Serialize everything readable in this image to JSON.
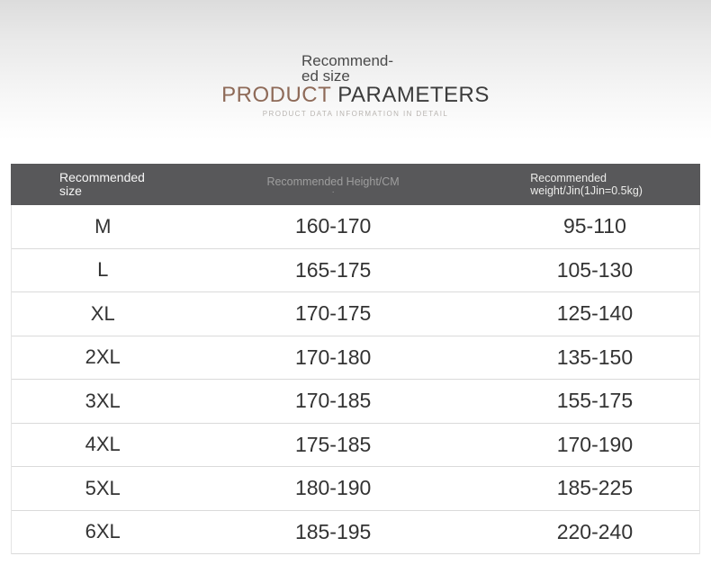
{
  "page": {
    "small_title": "Recommend-\ned size",
    "title_accent": "PRODUCT",
    "title_rest": "PARAMETERS",
    "subtitle": "PRODUCT DATA INFORMATION IN DETAIL"
  },
  "colors": {
    "accent": "#8e6a58",
    "header_bg": "#58585a",
    "body_text": "#333333",
    "row_border": "#dadada"
  },
  "table": {
    "headers": {
      "size_line1": "Recommended",
      "size_line2": "size",
      "height": "Recommended Height/CM",
      "height_dot": ".",
      "weight_line1": "Recommended",
      "weight_line2": "weight/Jin(1Jin=0.5kg)"
    },
    "rows": [
      {
        "size": "M",
        "height": "160-170",
        "weight": "95-110"
      },
      {
        "size": "L",
        "height": "165-175",
        "weight": "105-130"
      },
      {
        "size": "XL",
        "height": "170-175",
        "weight": "125-140"
      },
      {
        "size": "2XL",
        "height": "170-180",
        "weight": "135-150"
      },
      {
        "size": "3XL",
        "height": "170-185",
        "weight": "155-175"
      },
      {
        "size": "4XL",
        "height": "175-185",
        "weight": "170-190"
      },
      {
        "size": "5XL",
        "height": "180-190",
        "weight": "185-225"
      },
      {
        "size": "6XL",
        "height": "185-195",
        "weight": "220-240"
      }
    ]
  }
}
